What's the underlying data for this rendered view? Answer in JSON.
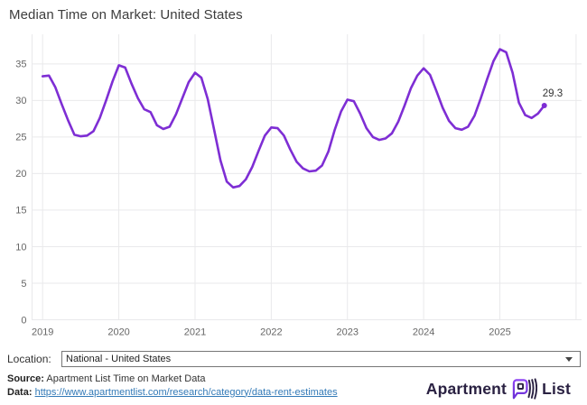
{
  "header": {
    "title": "Median Time on Market: United States"
  },
  "chart_data": {
    "type": "line",
    "title": "Median Time on Market: United States",
    "xlabel": "",
    "ylabel": "",
    "x_tick_labels": [
      "2019",
      "2020",
      "2021",
      "2022",
      "2023",
      "2024",
      "2025"
    ],
    "y_ticks": [
      0,
      5,
      10,
      15,
      20,
      25,
      30,
      35
    ],
    "ylim": [
      0,
      38.5
    ],
    "grid": true,
    "legend_position": "none",
    "line_color": "#7e2ed4",
    "end_label": "29.3",
    "series": [
      {
        "name": "National - United States",
        "start": "2019-01",
        "frequency": "monthly",
        "values": [
          33.3,
          33.4,
          31.8,
          29.5,
          27.3,
          25.3,
          25.1,
          25.2,
          25.8,
          27.6,
          30.0,
          32.6,
          34.8,
          34.5,
          32.3,
          30.3,
          28.8,
          28.4,
          26.6,
          26.1,
          26.4,
          28.1,
          30.3,
          32.5,
          33.8,
          33.1,
          30.2,
          26.0,
          21.8,
          18.9,
          18.1,
          18.3,
          19.2,
          20.9,
          23.1,
          25.2,
          26.3,
          26.2,
          25.2,
          23.3,
          21.6,
          20.7,
          20.3,
          20.4,
          21.1,
          23.0,
          26.0,
          28.5,
          30.1,
          29.9,
          28.2,
          26.2,
          25.0,
          24.6,
          24.8,
          25.5,
          27.1,
          29.3,
          31.7,
          33.4,
          34.4,
          33.5,
          31.3,
          29.0,
          27.2,
          26.2,
          26.0,
          26.4,
          27.9,
          30.3,
          32.9,
          35.4,
          37.0,
          36.6,
          33.8,
          29.7,
          28.0,
          27.6,
          28.2,
          29.3
        ]
      }
    ]
  },
  "location": {
    "label": "Location:",
    "selected": "National - United States"
  },
  "footer": {
    "source_label": "Source:",
    "source_text": "Apartment List Time on Market Data",
    "data_label": "Data:",
    "data_link": "https://www.apartmentlist.com/research/category/data-rent-estimates"
  },
  "logo": {
    "part1": "Apartment",
    "part2": "List"
  }
}
